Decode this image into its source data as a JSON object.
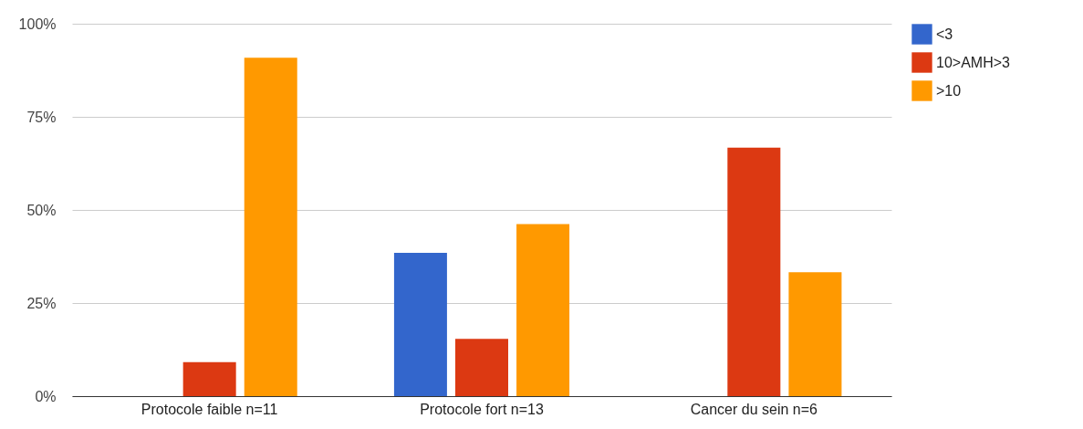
{
  "chart_data": {
    "type": "bar",
    "categories": [
      "Protocole faible n=11",
      "Protocole fort n=13",
      "Cancer du sein n=6"
    ],
    "series": [
      {
        "name": "<3",
        "color": "#3366cc",
        "values": [
          0,
          38.5,
          0
        ]
      },
      {
        "name": "10>AMH>3",
        "color": "#dc3912",
        "values": [
          9.1,
          15.4,
          66.7
        ]
      },
      {
        "name": ">10",
        "color": "#ff9900",
        "values": [
          90.9,
          46.2,
          33.3
        ]
      }
    ],
    "ylim": [
      0,
      100
    ],
    "yticks": [
      {
        "value": 0,
        "label": "0%"
      },
      {
        "value": 25,
        "label": "25%"
      },
      {
        "value": 50,
        "label": "50%"
      },
      {
        "value": 75,
        "label": "75%"
      },
      {
        "value": 100,
        "label": "100%"
      }
    ],
    "grid": "y",
    "legend": "top right"
  }
}
